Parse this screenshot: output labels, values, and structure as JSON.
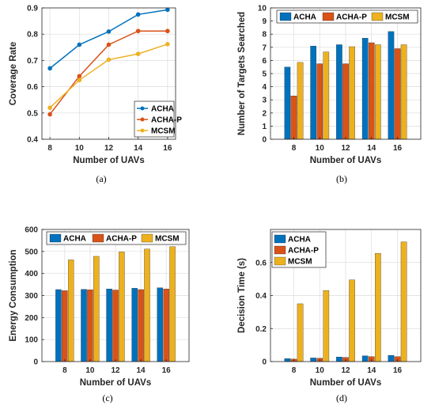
{
  "chart_data": [
    {
      "type": "line",
      "caption": "(a)",
      "xlabel": "Number of UAVs",
      "ylabel": "Coverage Rate",
      "x": [
        8,
        10,
        12,
        14,
        16
      ],
      "xticks": [
        "8",
        "10",
        "12",
        "14",
        "16"
      ],
      "ylim": [
        0.4,
        0.9
      ],
      "yticks": [
        "0.4",
        "0.5",
        "0.6",
        "0.7",
        "0.8",
        "0.9"
      ],
      "grid": true,
      "legend": "bottom-right",
      "series": [
        {
          "name": "ACHA",
          "color": "#0072BD",
          "values": [
            0.67,
            0.76,
            0.81,
            0.875,
            0.893
          ]
        },
        {
          "name": "ACHA-P",
          "color": "#D95319",
          "values": [
            0.495,
            0.64,
            0.76,
            0.812,
            0.812
          ]
        },
        {
          "name": "MCSM",
          "color": "#EDB120",
          "values": [
            0.52,
            0.625,
            0.703,
            0.725,
            0.762
          ]
        }
      ]
    },
    {
      "type": "bar",
      "caption": "(b)",
      "xlabel": "Number of UAVs",
      "ylabel": "Number of Targets Searched",
      "categories": [
        "8",
        "10",
        "12",
        "14",
        "16"
      ],
      "ylim": [
        0,
        10
      ],
      "yticks": [
        "0",
        "1",
        "2",
        "3",
        "4",
        "5",
        "6",
        "7",
        "8",
        "9",
        "10"
      ],
      "grid": true,
      "legend": "top",
      "series": [
        {
          "name": "ACHA",
          "color": "#0072BD",
          "values": [
            5.5,
            7.1,
            7.2,
            7.7,
            8.2
          ]
        },
        {
          "name": "ACHA-P",
          "color": "#D95319",
          "values": [
            3.3,
            5.75,
            5.75,
            7.35,
            6.9
          ]
        },
        {
          "name": "MCSM",
          "color": "#EDB120",
          "values": [
            5.85,
            6.65,
            7.05,
            7.2,
            7.2
          ]
        }
      ]
    },
    {
      "type": "bar",
      "caption": "(c)",
      "xlabel": "Number of UAVs",
      "ylabel": "Energy Consumption",
      "categories": [
        "8",
        "10",
        "12",
        "14",
        "16"
      ],
      "ylim": [
        0,
        600
      ],
      "yticks": [
        "0",
        "100",
        "200",
        "300",
        "400",
        "500",
        "600"
      ],
      "grid": true,
      "legend": "top",
      "series": [
        {
          "name": "ACHA",
          "color": "#0072BD",
          "values": [
            327,
            328,
            330,
            333,
            335
          ]
        },
        {
          "name": "ACHA-P",
          "color": "#D95319",
          "values": [
            322,
            326,
            325,
            327,
            330
          ]
        },
        {
          "name": "MCSM",
          "color": "#EDB120",
          "values": [
            462,
            478,
            498,
            511,
            522
          ]
        }
      ]
    },
    {
      "type": "bar",
      "caption": "(d)",
      "xlabel": "Number of UAVs",
      "ylabel": "Decision Time (s)",
      "categories": [
        "8",
        "10",
        "12",
        "14",
        "16"
      ],
      "ylim": [
        0,
        0.8
      ],
      "yticks": [
        "0",
        "0.2",
        "0.4",
        "0.6"
      ],
      "grid": true,
      "legend": "top-left",
      "series": [
        {
          "name": "ACHA",
          "color": "#0072BD",
          "values": [
            0.018,
            0.022,
            0.028,
            0.035,
            0.038
          ]
        },
        {
          "name": "ACHA-P",
          "color": "#D95319",
          "values": [
            0.015,
            0.02,
            0.025,
            0.03,
            0.03
          ]
        },
        {
          "name": "MCSM",
          "color": "#EDB120",
          "values": [
            0.35,
            0.43,
            0.495,
            0.655,
            0.725
          ]
        }
      ]
    }
  ]
}
